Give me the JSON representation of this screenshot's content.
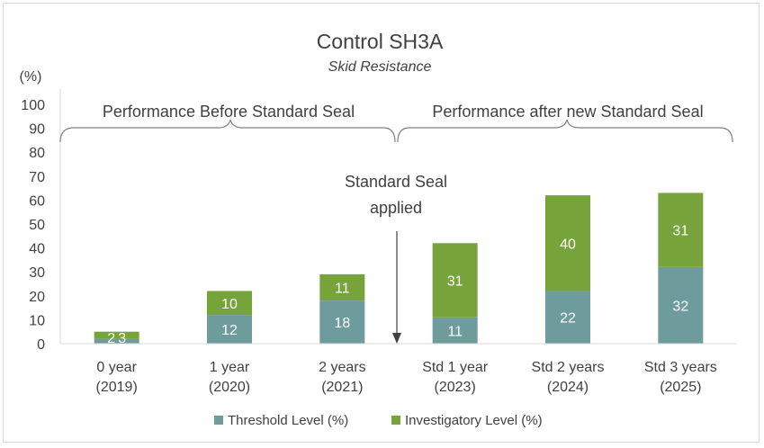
{
  "chart_data": {
    "type": "bar",
    "stacked": true,
    "title": "Control SH3A",
    "subtitle": "Skid Resistance",
    "ylabel": "(%)",
    "ylim": [
      0,
      100
    ],
    "yticks": [
      0,
      10,
      20,
      30,
      40,
      50,
      60,
      70,
      80,
      90,
      100
    ],
    "categories": [
      [
        "0 year",
        "(2019)"
      ],
      [
        "1 year",
        "(2020)"
      ],
      [
        "2 years",
        "(2021)"
      ],
      [
        "Std 1 year",
        "(2023)"
      ],
      [
        "Std 2 years",
        "(2024)"
      ],
      [
        "Std 3 years",
        "(2025)"
      ]
    ],
    "series": [
      {
        "name": "Threshold Level (%)",
        "color": "#6e9b9c",
        "values": [
          2,
          12,
          18,
          11,
          22,
          32
        ]
      },
      {
        "name": "Investigatory Level (%)",
        "color": "#77a43a",
        "values": [
          3,
          10,
          11,
          31,
          40,
          31
        ]
      }
    ],
    "grid": false,
    "legend_position": "bottom",
    "annotations": {
      "before_label": "Performance Before Standard Seal",
      "after_label": "Performance after new Standard Seal",
      "marker_line1": "Standard Seal",
      "marker_line2": "applied"
    },
    "bracket_color": "#808080",
    "axis_color": "#d9d9d9"
  }
}
